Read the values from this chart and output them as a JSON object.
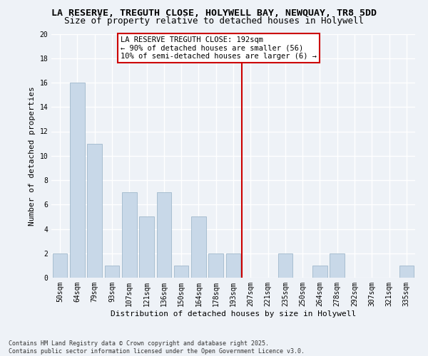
{
  "title_line1": "LA RESERVE, TREGUTH CLOSE, HOLYWELL BAY, NEWQUAY, TR8 5DD",
  "title_line2": "Size of property relative to detached houses in Holywell",
  "xlabel": "Distribution of detached houses by size in Holywell",
  "ylabel": "Number of detached properties",
  "categories": [
    "50sqm",
    "64sqm",
    "79sqm",
    "93sqm",
    "107sqm",
    "121sqm",
    "136sqm",
    "150sqm",
    "164sqm",
    "178sqm",
    "193sqm",
    "207sqm",
    "221sqm",
    "235sqm",
    "250sqm",
    "264sqm",
    "278sqm",
    "292sqm",
    "307sqm",
    "321sqm",
    "335sqm"
  ],
  "values": [
    2,
    16,
    11,
    1,
    7,
    5,
    7,
    1,
    5,
    2,
    2,
    0,
    0,
    2,
    0,
    1,
    2,
    0,
    0,
    0,
    1
  ],
  "bar_color": "#c8d8e8",
  "bar_edge_color": "#a0b8cc",
  "vline_index": 10,
  "vline_color": "#cc0000",
  "annotation_text": "LA RESERVE TREGUTH CLOSE: 192sqm\n← 90% of detached houses are smaller (56)\n10% of semi-detached houses are larger (6) →",
  "annotation_box_color": "#cc0000",
  "ylim": [
    0,
    20
  ],
  "yticks": [
    0,
    2,
    4,
    6,
    8,
    10,
    12,
    14,
    16,
    18,
    20
  ],
  "background_color": "#eef2f7",
  "grid_color": "#ffffff",
  "footer_text": "Contains HM Land Registry data © Crown copyright and database right 2025.\nContains public sector information licensed under the Open Government Licence v3.0.",
  "title_fontsize": 9.5,
  "subtitle_fontsize": 9,
  "axis_label_fontsize": 8,
  "tick_fontsize": 7,
  "annotation_fontsize": 7.5,
  "footer_fontsize": 6
}
